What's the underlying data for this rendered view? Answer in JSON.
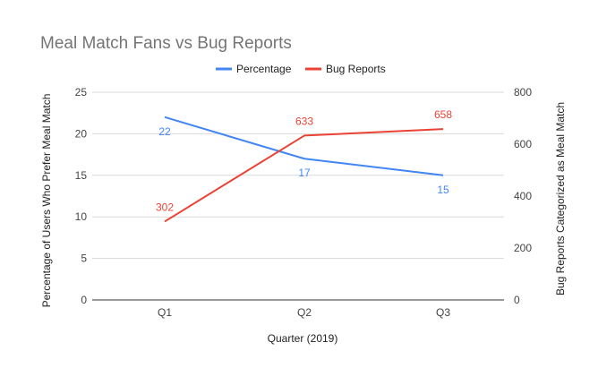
{
  "chart_data": {
    "type": "line",
    "title": "Meal Match Fans vs Bug Reports",
    "xlabel": "Quarter (2019)",
    "ylabel_left": "Percentage of Users Who Prefer Meal Match",
    "ylabel_right": "Bug Reports Categorized as Meal Match",
    "categories": [
      "Q1",
      "Q2",
      "Q3"
    ],
    "y_left": {
      "range": [
        0,
        25
      ],
      "ticks": [
        "0",
        "5",
        "10",
        "15",
        "20",
        "25"
      ]
    },
    "y_right": {
      "range": [
        0,
        800
      ],
      "ticks": [
        "0",
        "200",
        "400",
        "600",
        "800"
      ]
    },
    "grid": true,
    "legend_position": "top",
    "series": [
      {
        "name": "Percentage",
        "axis": "left",
        "color": "#4285f4",
        "values": [
          22,
          17,
          15
        ],
        "labels": [
          "22",
          "17",
          "15"
        ]
      },
      {
        "name": "Bug Reports",
        "axis": "right",
        "color": "#ea4335",
        "values": [
          302,
          633,
          658
        ],
        "labels": [
          "302",
          "633",
          "658"
        ]
      }
    ]
  }
}
